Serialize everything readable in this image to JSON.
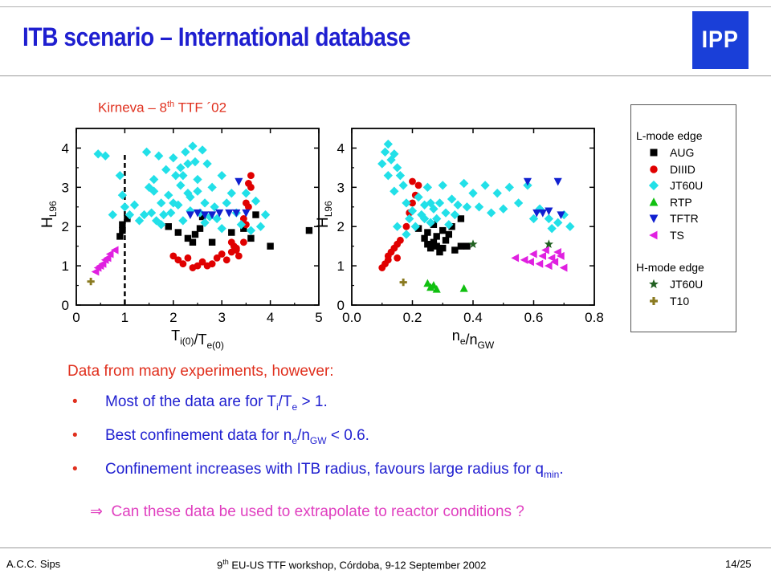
{
  "slide": {
    "title": "ITB scenario – International database",
    "logo_text": "IPP",
    "credit_prefix": "Kirneva – 8",
    "credit_sup": "th",
    "credit_suffix": " TTF ´02"
  },
  "legend": {
    "lmode_title": "L-mode edge",
    "hmode_title": "H-mode edge",
    "lmode_items": [
      {
        "label": "AUG",
        "color": "#000000",
        "marker": "square"
      },
      {
        "label": "DIIID",
        "color": "#e00000",
        "marker": "circle"
      },
      {
        "label": "JT60U",
        "color": "#22e0e8",
        "marker": "diamond"
      },
      {
        "label": "RTP",
        "color": "#10c010",
        "marker": "triangle-up"
      },
      {
        "label": "TFTR",
        "color": "#1020d0",
        "marker": "triangle-down"
      },
      {
        "label": "TS",
        "color": "#e020e0",
        "marker": "triangle-left"
      }
    ],
    "hmode_items": [
      {
        "label": "JT60U",
        "color": "#206020",
        "marker": "star"
      },
      {
        "label": "T10",
        "color": "#8a7a20",
        "marker": "cross"
      }
    ]
  },
  "chart_data": [
    {
      "type": "scatter",
      "xlabel": "T_i(0)/T_e(0)",
      "ylabel": "H_L96",
      "xlim": [
        0,
        5
      ],
      "ylim": [
        0,
        4.5
      ],
      "xticks": [
        "0",
        "1",
        "2",
        "3",
        "4",
        "5"
      ],
      "yticks": [
        "0",
        "1",
        "2",
        "3",
        "4"
      ],
      "reference_line_x": 1,
      "series": [
        {
          "name": "AUG",
          "points": [
            [
              0.9,
              1.75
            ],
            [
              0.95,
              1.9
            ],
            [
              0.95,
              2.05
            ],
            [
              1.05,
              2.2
            ],
            [
              1.9,
              2.0
            ],
            [
              2.1,
              1.85
            ],
            [
              2.3,
              1.7
            ],
            [
              2.4,
              1.6
            ],
            [
              2.45,
              1.8
            ],
            [
              2.6,
              2.25
            ],
            [
              2.55,
              1.95
            ],
            [
              2.8,
              1.6
            ],
            [
              3.2,
              1.85
            ],
            [
              3.45,
              1.95
            ],
            [
              3.6,
              1.7
            ],
            [
              3.7,
              2.3
            ],
            [
              4.0,
              1.5
            ],
            [
              4.8,
              1.9
            ]
          ]
        },
        {
          "name": "DIIID",
          "points": [
            [
              2.0,
              1.25
            ],
            [
              2.1,
              1.15
            ],
            [
              2.2,
              1.05
            ],
            [
              2.3,
              1.2
            ],
            [
              2.4,
              0.95
            ],
            [
              2.5,
              1.0
            ],
            [
              2.6,
              1.1
            ],
            [
              2.7,
              1.0
            ],
            [
              2.8,
              1.05
            ],
            [
              2.9,
              1.2
            ],
            [
              3.0,
              1.3
            ],
            [
              3.1,
              1.15
            ],
            [
              3.2,
              1.35
            ],
            [
              3.25,
              1.5
            ],
            [
              3.3,
              1.4
            ],
            [
              3.35,
              1.25
            ],
            [
              3.2,
              1.6
            ],
            [
              3.45,
              1.6
            ],
            [
              3.5,
              2.05
            ],
            [
              3.45,
              2.2
            ],
            [
              3.55,
              2.5
            ],
            [
              3.5,
              2.6
            ],
            [
              3.6,
              3.0
            ],
            [
              3.55,
              3.1
            ],
            [
              3.6,
              3.3
            ],
            [
              3.3,
              1.45
            ]
          ]
        },
        {
          "name": "JT60U",
          "points": [
            [
              0.45,
              3.85
            ],
            [
              0.6,
              3.8
            ],
            [
              0.75,
              2.3
            ],
            [
              0.9,
              3.3
            ],
            [
              0.95,
              2.8
            ],
            [
              1.0,
              2.5
            ],
            [
              1.1,
              2.3
            ],
            [
              1.2,
              2.55
            ],
            [
              1.3,
              2.15
            ],
            [
              1.4,
              2.3
            ],
            [
              1.5,
              3.0
            ],
            [
              1.55,
              2.35
            ],
            [
              1.6,
              3.2
            ],
            [
              1.65,
              2.15
            ],
            [
              1.7,
              3.8
            ],
            [
              1.75,
              2.6
            ],
            [
              1.8,
              2.3
            ],
            [
              1.85,
              3.45
            ],
            [
              1.9,
              2.8
            ],
            [
              1.95,
              2.35
            ],
            [
              2.0,
              3.75
            ],
            [
              2.05,
              3.3
            ],
            [
              2.1,
              2.55
            ],
            [
              2.15,
              3.5
            ],
            [
              2.2,
              2.15
            ],
            [
              2.25,
              3.9
            ],
            [
              2.3,
              2.85
            ],
            [
              2.3,
              3.6
            ],
            [
              2.35,
              2.4
            ],
            [
              2.4,
              4.05
            ],
            [
              2.45,
              3.65
            ],
            [
              2.5,
              3.2
            ],
            [
              2.5,
              2.9
            ],
            [
              2.55,
              2.35
            ],
            [
              2.6,
              3.95
            ],
            [
              2.65,
              2.6
            ],
            [
              2.7,
              3.6
            ],
            [
              2.75,
              2.25
            ],
            [
              2.8,
              3.0
            ],
            [
              2.85,
              2.5
            ],
            [
              2.9,
              2.2
            ],
            [
              3.0,
              3.3
            ],
            [
              3.1,
              2.6
            ],
            [
              3.2,
              2.85
            ],
            [
              3.3,
              2.35
            ],
            [
              3.4,
              2.05
            ],
            [
              3.5,
              2.85
            ],
            [
              3.6,
              1.9
            ],
            [
              3.7,
              2.65
            ],
            [
              2.2,
              3.3
            ],
            [
              1.45,
              3.9
            ],
            [
              1.6,
              2.9
            ],
            [
              2.15,
              3.05
            ],
            [
              2.0,
              2.6
            ],
            [
              2.35,
              2.75
            ],
            [
              1.75,
              2.05
            ],
            [
              2.65,
              2.1
            ],
            [
              3.0,
              1.95
            ],
            [
              3.8,
              2.0
            ],
            [
              3.9,
              2.3
            ]
          ]
        },
        {
          "name": "TFTR",
          "points": [
            [
              2.35,
              2.3
            ],
            [
              2.5,
              2.35
            ],
            [
              2.65,
              2.3
            ],
            [
              2.8,
              2.3
            ],
            [
              2.95,
              2.35
            ],
            [
              3.15,
              2.35
            ],
            [
              3.3,
              2.35
            ],
            [
              3.35,
              3.15
            ],
            [
              3.5,
              2.35
            ]
          ]
        },
        {
          "name": "TS",
          "points": [
            [
              0.4,
              0.85
            ],
            [
              0.45,
              0.95
            ],
            [
              0.5,
              1.0
            ],
            [
              0.55,
              1.05
            ],
            [
              0.6,
              1.15
            ],
            [
              0.65,
              1.2
            ],
            [
              0.7,
              1.3
            ],
            [
              0.8,
              1.4
            ]
          ]
        },
        {
          "name": "T10",
          "points": [
            [
              0.3,
              0.6
            ]
          ]
        }
      ]
    },
    {
      "type": "scatter",
      "xlabel": "n_e/n_GW",
      "ylabel": "H_L96",
      "xlim": [
        0,
        0.8
      ],
      "ylim": [
        0,
        4.5
      ],
      "xticks": [
        "0.0",
        "0.2",
        "0.4",
        "0.6",
        "0.8"
      ],
      "yticks": [
        "0",
        "1",
        "2",
        "3",
        "4"
      ],
      "series": [
        {
          "name": "AUG",
          "points": [
            [
              0.22,
              1.95
            ],
            [
              0.24,
              1.7
            ],
            [
              0.25,
              1.55
            ],
            [
              0.26,
              1.45
            ],
            [
              0.27,
              1.6
            ],
            [
              0.28,
              1.5
            ],
            [
              0.28,
              1.75
            ],
            [
              0.29,
              1.35
            ],
            [
              0.3,
              1.45
            ],
            [
              0.3,
              1.9
            ],
            [
              0.31,
              1.65
            ],
            [
              0.32,
              1.8
            ],
            [
              0.33,
              2.0
            ],
            [
              0.34,
              1.4
            ],
            [
              0.36,
              1.5
            ],
            [
              0.38,
              1.5
            ],
            [
              0.25,
              1.85
            ],
            [
              0.27,
              2.05
            ],
            [
              0.36,
              2.2
            ]
          ]
        },
        {
          "name": "DIIID",
          "points": [
            [
              0.1,
              0.95
            ],
            [
              0.11,
              1.05
            ],
            [
              0.12,
              1.15
            ],
            [
              0.12,
              1.25
            ],
            [
              0.13,
              1.35
            ],
            [
              0.14,
              1.45
            ],
            [
              0.15,
              1.55
            ],
            [
              0.15,
              1.2
            ],
            [
              0.16,
              1.65
            ],
            [
              0.18,
              2.0
            ],
            [
              0.19,
              2.35
            ],
            [
              0.2,
              2.6
            ],
            [
              0.21,
              2.8
            ],
            [
              0.22,
              3.05
            ],
            [
              0.2,
              3.15
            ]
          ]
        },
        {
          "name": "JT60U",
          "points": [
            [
              0.1,
              3.6
            ],
            [
              0.11,
              3.9
            ],
            [
              0.12,
              4.1
            ],
            [
              0.13,
              3.7
            ],
            [
              0.14,
              3.85
            ],
            [
              0.15,
              3.5
            ],
            [
              0.16,
              3.3
            ],
            [
              0.12,
              3.3
            ],
            [
              0.14,
              2.9
            ],
            [
              0.17,
              3.05
            ],
            [
              0.18,
              2.6
            ],
            [
              0.19,
              2.2
            ],
            [
              0.2,
              2.4
            ],
            [
              0.21,
              2.0
            ],
            [
              0.22,
              2.75
            ],
            [
              0.23,
              2.3
            ],
            [
              0.24,
              2.55
            ],
            [
              0.25,
              3.0
            ],
            [
              0.26,
              2.1
            ],
            [
              0.27,
              2.45
            ],
            [
              0.28,
              2.2
            ],
            [
              0.29,
              2.6
            ],
            [
              0.3,
              3.05
            ],
            [
              0.31,
              2.35
            ],
            [
              0.32,
              2.05
            ],
            [
              0.33,
              2.7
            ],
            [
              0.34,
              2.3
            ],
            [
              0.35,
              2.55
            ],
            [
              0.37,
              3.1
            ],
            [
              0.4,
              2.85
            ],
            [
              0.42,
              2.5
            ],
            [
              0.44,
              3.05
            ],
            [
              0.46,
              2.35
            ],
            [
              0.48,
              2.85
            ],
            [
              0.5,
              2.45
            ],
            [
              0.52,
              3.0
            ],
            [
              0.55,
              2.6
            ],
            [
              0.58,
              3.05
            ],
            [
              0.6,
              2.2
            ],
            [
              0.62,
              2.45
            ],
            [
              0.65,
              2.2
            ],
            [
              0.68,
              2.1
            ],
            [
              0.7,
              2.3
            ],
            [
              0.72,
              2.0
            ],
            [
              0.15,
              2.0
            ],
            [
              0.18,
              1.8
            ],
            [
              0.24,
              2.2
            ],
            [
              0.26,
              2.6
            ],
            [
              0.38,
              2.5
            ],
            [
              0.66,
              1.95
            ]
          ]
        },
        {
          "name": "RTP",
          "points": [
            [
              0.25,
              0.55
            ],
            [
              0.26,
              0.45
            ],
            [
              0.27,
              0.5
            ],
            [
              0.28,
              0.4
            ],
            [
              0.37,
              0.42
            ]
          ]
        },
        {
          "name": "TFTR",
          "points": [
            [
              0.58,
              3.15
            ],
            [
              0.61,
              2.35
            ],
            [
              0.63,
              2.35
            ],
            [
              0.65,
              2.4
            ],
            [
              0.68,
              3.15
            ],
            [
              0.69,
              2.3
            ]
          ]
        },
        {
          "name": "TS",
          "points": [
            [
              0.54,
              1.2
            ],
            [
              0.57,
              1.15
            ],
            [
              0.59,
              1.1
            ],
            [
              0.6,
              1.3
            ],
            [
              0.62,
              1.05
            ],
            [
              0.63,
              1.25
            ],
            [
              0.64,
              1.4
            ],
            [
              0.65,
              1.0
            ],
            [
              0.66,
              1.2
            ],
            [
              0.67,
              1.1
            ],
            [
              0.68,
              1.35
            ],
            [
              0.69,
              1.25
            ],
            [
              0.7,
              0.95
            ]
          ]
        },
        {
          "name": "JT60U (H-mode edge)",
          "points": [
            [
              0.4,
              1.55
            ],
            [
              0.65,
              1.55
            ]
          ]
        },
        {
          "name": "T10",
          "points": [
            [
              0.17,
              0.58
            ]
          ]
        }
      ]
    }
  ],
  "summary": {
    "intro": "Data from many experiments, however:",
    "bullet_symbol": "•",
    "bullets": [
      {
        "pre": "Most of the data are for T",
        "sub1": "i",
        "mid": "/T",
        "sub2": "e",
        "post": " > 1."
      },
      {
        "pre": "Best confinement data for n",
        "sub1": "e",
        "mid": "/n",
        "sub2": "GW",
        "post": " < 0.6."
      },
      {
        "pre": "Confinement increases with ITB radius, favours large radius for q",
        "sub1": "min",
        "mid": ".",
        "sub2": "",
        "post": ""
      }
    ],
    "conclusion_arrow": "⇒",
    "conclusion": "Can these data be used to extrapolate to reactor conditions ?"
  },
  "footer": {
    "author": "A.C.C. Sips",
    "event_prefix": "9",
    "event_sup": "th",
    "event_suffix": " EU-US TTF workshop, Córdoba, 9-12 September 2002",
    "page": "14/25"
  }
}
